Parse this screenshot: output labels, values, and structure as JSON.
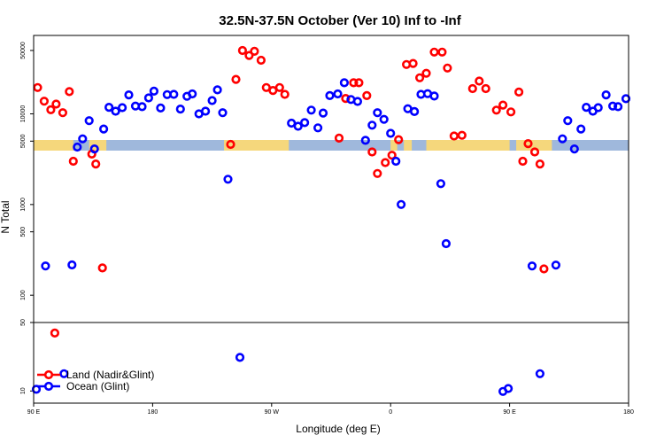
{
  "chart_data": {
    "type": "scatter",
    "title": "32.5N-37.5N October (Ver 10)   Inf to -Inf",
    "xlabel": "Longitude (deg E)",
    "ylabel": "N Total",
    "x_ticks": [
      {
        "value": 90,
        "label": "90 E"
      },
      {
        "value": 180,
        "label": "180"
      },
      {
        "value": 270,
        "label": "90 W"
      },
      {
        "value": 360,
        "label": "0"
      },
      {
        "value": 450,
        "label": "90 E"
      },
      {
        "value": 540,
        "label": "180"
      }
    ],
    "xlim": [
      90,
      540
    ],
    "y_upper": {
      "ylim": [
        50,
        70000
      ],
      "scale": "log",
      "ticks": [
        {
          "value": 50000,
          "label": "50000"
        },
        {
          "value": 10000,
          "label": "10000"
        },
        {
          "value": 5000,
          "label": "5000"
        },
        {
          "value": 1000,
          "label": "1000"
        },
        {
          "value": 500,
          "label": "500"
        },
        {
          "value": 100,
          "label": "100"
        },
        {
          "value": 50,
          "label": "50"
        }
      ]
    },
    "y_lower": {
      "ylim": [
        8,
        50
      ],
      "scale": "log",
      "ticks": [
        {
          "value": 50,
          "label": "50"
        },
        {
          "value": 10,
          "label": "10"
        }
      ]
    },
    "legend": {
      "placement": "bottom-left",
      "entries": [
        {
          "name": "Land (Nadir&Glint)",
          "color": "#ff0000"
        },
        {
          "name": "Ocean (Glint)",
          "color": "#0000ff"
        }
      ]
    },
    "map_colors": {
      "land": "#f5d77c",
      "ocean": "#9fb8dc"
    },
    "series": [
      {
        "name": "Land (Nadir&Glint)",
        "color": "#ff0000",
        "points": [
          [
            93,
            19500
          ],
          [
            98,
            13800
          ],
          [
            103,
            11100
          ],
          [
            107,
            12800
          ],
          [
            112,
            10300
          ],
          [
            117,
            17600
          ],
          [
            120,
            3000
          ],
          [
            134,
            3600
          ],
          [
            137,
            2800
          ],
          [
            142,
            200
          ],
          [
            239,
            4600
          ],
          [
            243,
            24000
          ],
          [
            248,
            50000
          ],
          [
            253,
            44000
          ],
          [
            257,
            49000
          ],
          [
            262,
            39000
          ],
          [
            266,
            19500
          ],
          [
            271,
            18100
          ],
          [
            276,
            19500
          ],
          [
            280,
            16400
          ],
          [
            321,
            5400
          ],
          [
            326,
            14800
          ],
          [
            332,
            22000
          ],
          [
            336,
            22000
          ],
          [
            342,
            15900
          ],
          [
            346,
            3800
          ],
          [
            350,
            2200
          ],
          [
            356,
            2900
          ],
          [
            361,
            3500
          ],
          [
            366,
            5200
          ],
          [
            372,
            35000
          ],
          [
            377,
            36000
          ],
          [
            382,
            25000
          ],
          [
            387,
            28000
          ],
          [
            393,
            48000
          ],
          [
            399,
            48000
          ],
          [
            403,
            32000
          ],
          [
            408,
            5700
          ],
          [
            414,
            5800
          ],
          [
            422,
            19000
          ],
          [
            427,
            23000
          ],
          [
            432,
            19000
          ],
          [
            440,
            11000
          ],
          [
            445,
            12500
          ],
          [
            451,
            10500
          ],
          [
            457,
            17400
          ],
          [
            460,
            3000
          ],
          [
            464,
            4700
          ],
          [
            469,
            3800
          ],
          [
            473,
            2800
          ],
          [
            476,
            195
          ],
          [
            106,
            39
          ]
        ]
      },
      {
        "name": "Ocean (Glint)",
        "color": "#0000ff",
        "points": [
          [
            99,
            210
          ],
          [
            119,
            216
          ],
          [
            123,
            4300
          ],
          [
            127,
            5300
          ],
          [
            132,
            8400
          ],
          [
            136,
            4100
          ],
          [
            143,
            6800
          ],
          [
            147,
            11800
          ],
          [
            152,
            10700
          ],
          [
            157,
            11700
          ],
          [
            162,
            16200
          ],
          [
            167,
            12200
          ],
          [
            172,
            12000
          ],
          [
            177,
            15000
          ],
          [
            181,
            17800
          ],
          [
            186,
            11600
          ],
          [
            191,
            16300
          ],
          [
            196,
            16400
          ],
          [
            201,
            11300
          ],
          [
            206,
            15600
          ],
          [
            210,
            16600
          ],
          [
            215,
            10000
          ],
          [
            220,
            10700
          ],
          [
            225,
            14000
          ],
          [
            229,
            18400
          ],
          [
            233,
            10300
          ],
          [
            237,
            1900
          ],
          [
            285,
            7900
          ],
          [
            290,
            7300
          ],
          [
            295,
            8000
          ],
          [
            300,
            11000
          ],
          [
            305,
            7000
          ],
          [
            309,
            10200
          ],
          [
            314,
            15900
          ],
          [
            320,
            16600
          ],
          [
            325,
            22000
          ],
          [
            330,
            14400
          ],
          [
            335,
            13700
          ],
          [
            341,
            5100
          ],
          [
            346,
            7500
          ],
          [
            350,
            10300
          ],
          [
            355,
            8700
          ],
          [
            360,
            6100
          ],
          [
            364,
            3000
          ],
          [
            368,
            1000
          ],
          [
            373,
            11400
          ],
          [
            378,
            10600
          ],
          [
            383,
            16400
          ],
          [
            388,
            16700
          ],
          [
            393,
            15700
          ],
          [
            398,
            1700
          ],
          [
            402,
            370
          ],
          [
            467,
            210
          ],
          [
            485,
            215
          ],
          [
            490,
            5300
          ],
          [
            494,
            8400
          ],
          [
            499,
            4100
          ],
          [
            504,
            6800
          ],
          [
            508,
            11800
          ],
          [
            513,
            10700
          ],
          [
            517,
            11700
          ],
          [
            523,
            16200
          ],
          [
            528,
            12200
          ],
          [
            532,
            12000
          ],
          [
            538,
            14700
          ]
        ]
      },
      {
        "name": "Ocean (Glint) lower panel",
        "color": "#0000ff",
        "points": [
          [
            92,
            10.4
          ],
          [
            113,
            15
          ],
          [
            246,
            22
          ],
          [
            445,
            9.9
          ],
          [
            449,
            10.6
          ],
          [
            473,
            15
          ]
        ]
      }
    ]
  }
}
